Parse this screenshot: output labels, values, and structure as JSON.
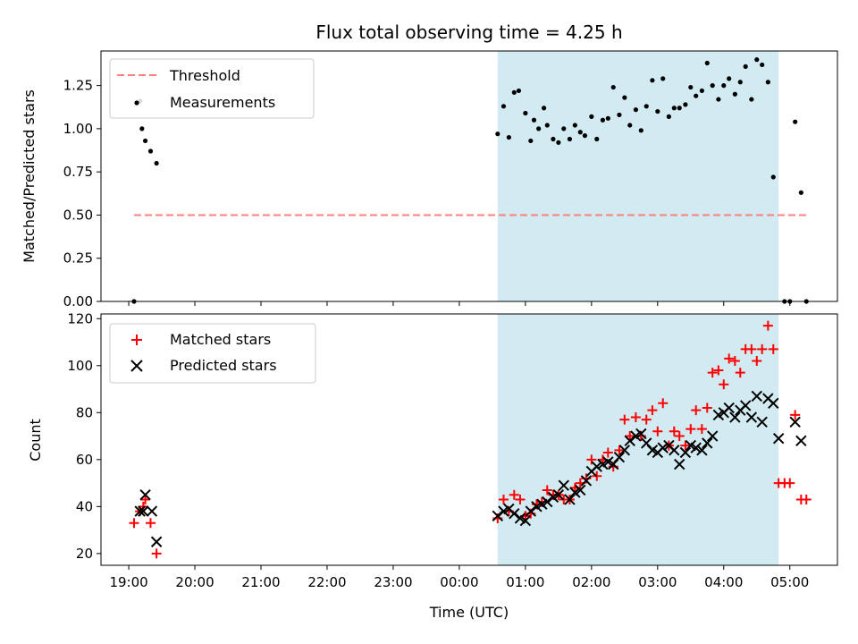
{
  "title": "Flux total observing time = 4.25 h",
  "colors": {
    "threshold": "#ff7f7f",
    "measurements": "#000000",
    "matched": "#ff0000",
    "predicted": "#000000",
    "shade": "#add8e6"
  },
  "chart_data": [
    {
      "type": "scatter",
      "ylabel": "Matched/Predicted stars",
      "xlabel": "",
      "ylim": [
        0,
        1.45
      ],
      "yticks": [
        0.0,
        0.25,
        0.5,
        0.75,
        1.0,
        1.25
      ],
      "ytick_labels": [
        "0.00",
        "0.25",
        "0.50",
        "0.75",
        "1.00",
        "1.25"
      ],
      "x_unit": "hours since 19:00 UTC",
      "xlim": [
        -0.42,
        10.72
      ],
      "shaded_span": [
        5.58,
        9.83
      ],
      "legend": {
        "position": "top-left",
        "entries": [
          "Threshold",
          "Measurements"
        ]
      },
      "threshold": {
        "name": "Threshold",
        "y": 0.5,
        "x_range": [
          0.08,
          10.25
        ]
      },
      "series": [
        {
          "name": "Measurements",
          "points": [
            [
              0.08,
              0.0
            ],
            [
              0.17,
              1.16
            ],
            [
              0.2,
              1.0
            ],
            [
              0.25,
              0.93
            ],
            [
              0.33,
              0.87
            ],
            [
              0.42,
              0.8
            ],
            [
              5.58,
              0.97
            ],
            [
              5.67,
              1.13
            ],
            [
              5.75,
              0.95
            ],
            [
              5.83,
              1.21
            ],
            [
              5.9,
              1.22
            ],
            [
              6.0,
              1.09
            ],
            [
              6.08,
              0.93
            ],
            [
              6.13,
              1.05
            ],
            [
              6.2,
              1.0
            ],
            [
              6.28,
              1.12
            ],
            [
              6.33,
              1.02
            ],
            [
              6.42,
              0.94
            ],
            [
              6.5,
              0.92
            ],
            [
              6.58,
              1.0
            ],
            [
              6.67,
              0.94
            ],
            [
              6.75,
              1.02
            ],
            [
              6.83,
              0.98
            ],
            [
              6.9,
              0.96
            ],
            [
              7.0,
              1.07
            ],
            [
              7.08,
              0.94
            ],
            [
              7.17,
              1.05
            ],
            [
              7.25,
              1.06
            ],
            [
              7.33,
              1.24
            ],
            [
              7.42,
              1.08
            ],
            [
              7.5,
              1.18
            ],
            [
              7.58,
              1.02
            ],
            [
              7.67,
              1.11
            ],
            [
              7.75,
              0.99
            ],
            [
              7.83,
              1.13
            ],
            [
              7.92,
              1.28
            ],
            [
              8.0,
              1.1
            ],
            [
              8.08,
              1.29
            ],
            [
              8.17,
              1.07
            ],
            [
              8.25,
              1.12
            ],
            [
              8.33,
              1.12
            ],
            [
              8.42,
              1.14
            ],
            [
              8.5,
              1.24
            ],
            [
              8.58,
              1.19
            ],
            [
              8.67,
              1.22
            ],
            [
              8.75,
              1.38
            ],
            [
              8.83,
              1.25
            ],
            [
              8.92,
              1.17
            ],
            [
              9.0,
              1.25
            ],
            [
              9.08,
              1.29
            ],
            [
              9.17,
              1.2
            ],
            [
              9.25,
              1.27
            ],
            [
              9.33,
              1.36
            ],
            [
              9.42,
              1.17
            ],
            [
              9.5,
              1.4
            ],
            [
              9.58,
              1.37
            ],
            [
              9.67,
              1.27
            ],
            [
              9.75,
              0.72
            ],
            [
              9.92,
              0.0
            ],
            [
              10.0,
              0.0
            ],
            [
              10.08,
              1.04
            ],
            [
              10.17,
              0.63
            ],
            [
              10.25,
              0.0
            ]
          ]
        }
      ]
    },
    {
      "type": "scatter",
      "ylabel": "Count",
      "xlabel": "Time (UTC)",
      "ylim": [
        15,
        122
      ],
      "yticks": [
        20,
        40,
        60,
        80,
        100,
        120
      ],
      "ytick_labels": [
        "20",
        "40",
        "60",
        "80",
        "100",
        "120"
      ],
      "x_unit": "hours since 19:00 UTC",
      "xlim": [
        -0.42,
        10.72
      ],
      "xticks": [
        0,
        1,
        2,
        3,
        4,
        5,
        6,
        7,
        8,
        9,
        10
      ],
      "xtick_labels": [
        "19:00",
        "20:00",
        "21:00",
        "22:00",
        "23:00",
        "00:00",
        "01:00",
        "02:00",
        "03:00",
        "04:00",
        "05:00"
      ],
      "shaded_span": [
        5.58,
        9.83
      ],
      "legend": {
        "position": "top-left",
        "entries": [
          "Matched stars",
          "Predicted stars"
        ]
      },
      "series": [
        {
          "name": "Matched stars",
          "points": [
            [
              0.08,
              33
            ],
            [
              0.17,
              38
            ],
            [
              0.22,
              40
            ],
            [
              0.25,
              43
            ],
            [
              0.33,
              33
            ],
            [
              0.42,
              20
            ],
            [
              5.58,
              35
            ],
            [
              5.67,
              43
            ],
            [
              5.75,
              38
            ],
            [
              5.83,
              45
            ],
            [
              5.92,
              43
            ],
            [
              6.0,
              36
            ],
            [
              6.08,
              37
            ],
            [
              6.17,
              41
            ],
            [
              6.25,
              42
            ],
            [
              6.33,
              47
            ],
            [
              6.42,
              45
            ],
            [
              6.5,
              45
            ],
            [
              6.58,
              43
            ],
            [
              6.67,
              43
            ],
            [
              6.75,
              48
            ],
            [
              6.83,
              50
            ],
            [
              6.92,
              52
            ],
            [
              7.0,
              60
            ],
            [
              7.08,
              53
            ],
            [
              7.17,
              60
            ],
            [
              7.25,
              63
            ],
            [
              7.33,
              57
            ],
            [
              7.42,
              64
            ],
            [
              7.5,
              77
            ],
            [
              7.58,
              70
            ],
            [
              7.67,
              78
            ],
            [
              7.75,
              70
            ],
            [
              7.83,
              77
            ],
            [
              7.92,
              81
            ],
            [
              8.0,
              72
            ],
            [
              8.08,
              84
            ],
            [
              8.17,
              66
            ],
            [
              8.25,
              72
            ],
            [
              8.33,
              70
            ],
            [
              8.42,
              66
            ],
            [
              8.5,
              73
            ],
            [
              8.58,
              81
            ],
            [
              8.67,
              73
            ],
            [
              8.75,
              82
            ],
            [
              8.83,
              97
            ],
            [
              8.92,
              98
            ],
            [
              9.0,
              92
            ],
            [
              9.08,
              103
            ],
            [
              9.17,
              102
            ],
            [
              9.25,
              97
            ],
            [
              9.33,
              107
            ],
            [
              9.42,
              107
            ],
            [
              9.5,
              102
            ],
            [
              9.58,
              107
            ],
            [
              9.67,
              117
            ],
            [
              9.75,
              107
            ],
            [
              9.83,
              50
            ],
            [
              9.92,
              50
            ],
            [
              10.0,
              50
            ],
            [
              10.08,
              79
            ],
            [
              10.17,
              43
            ],
            [
              10.25,
              43
            ]
          ]
        },
        {
          "name": "Predicted stars",
          "points": [
            [
              0.17,
              38
            ],
            [
              0.22,
              38
            ],
            [
              0.25,
              45
            ],
            [
              0.35,
              38
            ],
            [
              0.42,
              25
            ],
            [
              5.58,
              36
            ],
            [
              5.67,
              38
            ],
            [
              5.75,
              39
            ],
            [
              5.83,
              37
            ],
            [
              5.92,
              35
            ],
            [
              6.0,
              34
            ],
            [
              6.08,
              38
            ],
            [
              6.17,
              40
            ],
            [
              6.25,
              41
            ],
            [
              6.33,
              42
            ],
            [
              6.42,
              44
            ],
            [
              6.5,
              45
            ],
            [
              6.58,
              49
            ],
            [
              6.67,
              43
            ],
            [
              6.75,
              46
            ],
            [
              6.83,
              47
            ],
            [
              6.92,
              51
            ],
            [
              7.0,
              55
            ],
            [
              7.08,
              57
            ],
            [
              7.17,
              58
            ],
            [
              7.25,
              59
            ],
            [
              7.33,
              58
            ],
            [
              7.42,
              61
            ],
            [
              7.5,
              64
            ],
            [
              7.58,
              68
            ],
            [
              7.67,
              70
            ],
            [
              7.75,
              71
            ],
            [
              7.83,
              67
            ],
            [
              7.92,
              64
            ],
            [
              8.0,
              63
            ],
            [
              8.08,
              65
            ],
            [
              8.17,
              66
            ],
            [
              8.25,
              64
            ],
            [
              8.33,
              58
            ],
            [
              8.42,
              63
            ],
            [
              8.5,
              66
            ],
            [
              8.58,
              65
            ],
            [
              8.67,
              64
            ],
            [
              8.75,
              67
            ],
            [
              8.83,
              70
            ],
            [
              8.92,
              79
            ],
            [
              9.0,
              80
            ],
            [
              9.08,
              82
            ],
            [
              9.17,
              78
            ],
            [
              9.25,
              81
            ],
            [
              9.33,
              83
            ],
            [
              9.42,
              78
            ],
            [
              9.5,
              87
            ],
            [
              9.58,
              76
            ],
            [
              9.67,
              86
            ],
            [
              9.75,
              84
            ],
            [
              9.83,
              69
            ],
            [
              10.08,
              76
            ],
            [
              10.17,
              68
            ]
          ]
        }
      ]
    }
  ]
}
